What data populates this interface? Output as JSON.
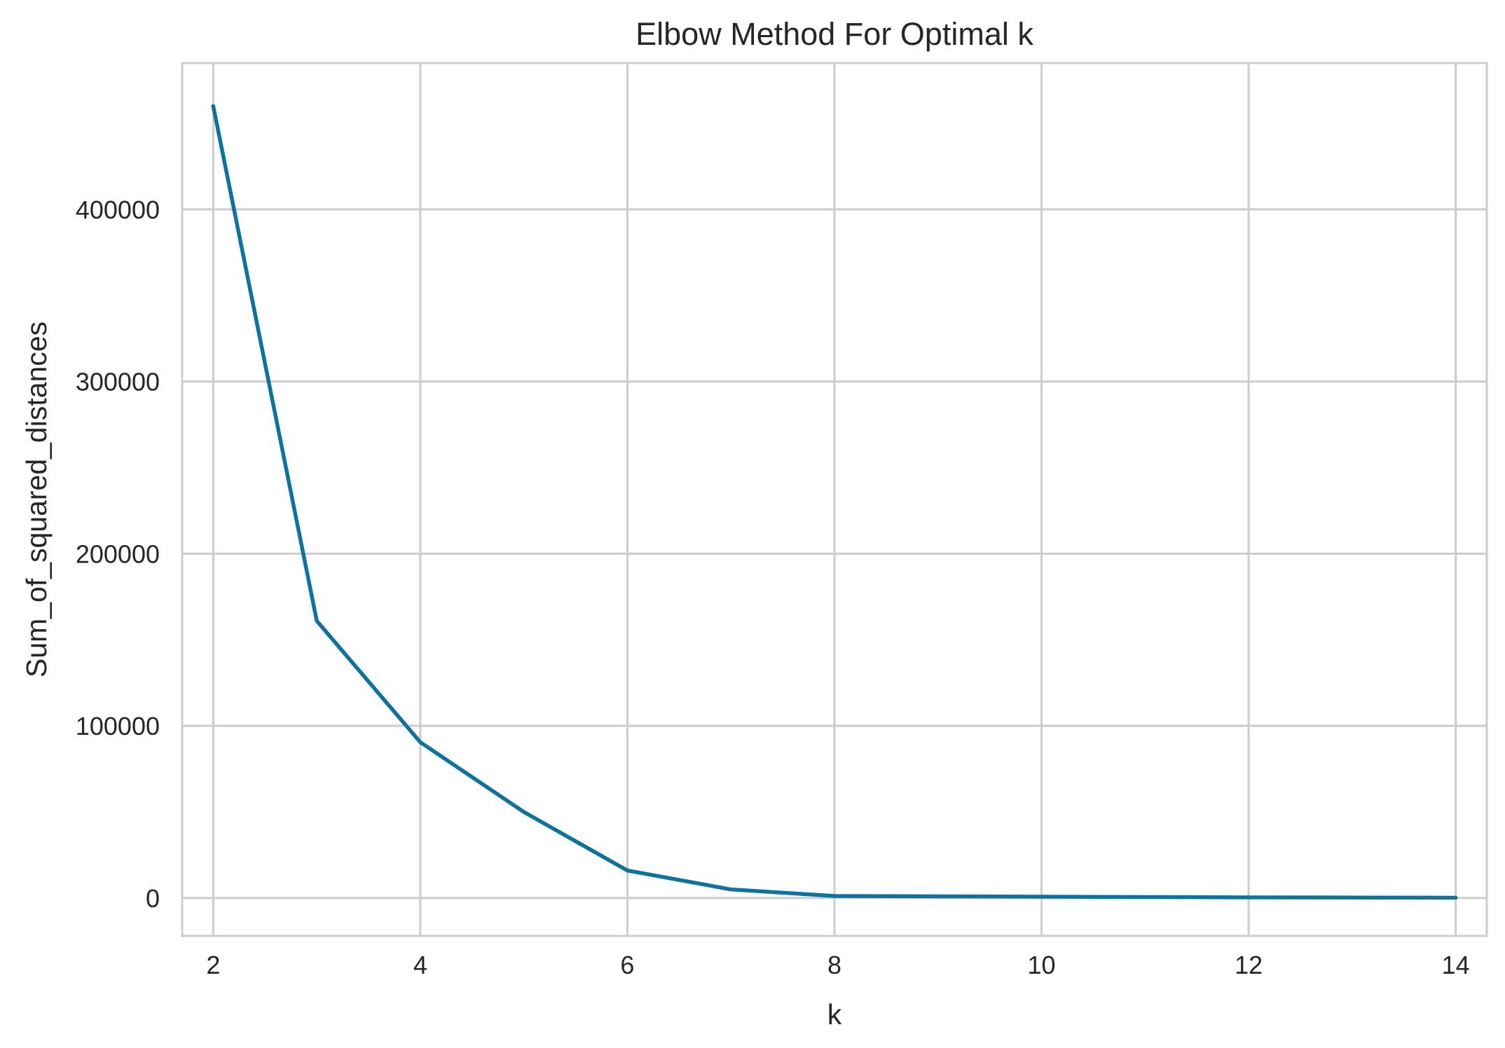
{
  "chart_data": {
    "type": "line",
    "title": "Elbow Method For Optimal k",
    "xlabel": "k",
    "ylabel": "Sum_of_squared_distances",
    "x": [
      2,
      3,
      4,
      5,
      6,
      7,
      8,
      9,
      10,
      11,
      12,
      13,
      14
    ],
    "series": [
      {
        "values": [
          460000,
          161000,
          90500,
          50000,
          16000,
          5000,
          1200,
          1000,
          800,
          600,
          400,
          300,
          200
        ]
      }
    ],
    "xlim": [
      1.7,
      14.3
    ],
    "ylim": [
      -22000,
      485000
    ],
    "xticks": [
      2,
      4,
      6,
      8,
      10,
      12,
      14
    ],
    "yticks": [
      0,
      100000,
      200000,
      300000,
      400000
    ],
    "xtick_labels": [
      "2",
      "4",
      "6",
      "8",
      "10",
      "12",
      "14"
    ],
    "ytick_labels": [
      "0",
      "100000",
      "200000",
      "300000",
      "400000"
    ],
    "grid": true,
    "line_color": "#0e72a0",
    "grid_color": "#cccccc",
    "spine_color": "#cccccc"
  }
}
